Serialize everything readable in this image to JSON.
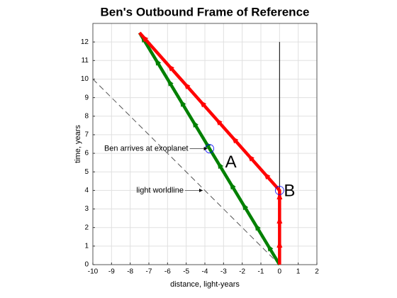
{
  "chart_data": {
    "type": "line",
    "title": "Ben's Outbound Frame of Reference",
    "xlabel": "distance, light-years",
    "ylabel": "time, years",
    "xlim": [
      -10,
      2
    ],
    "xticks": [
      -10,
      -9,
      -8,
      -7,
      -6,
      -5,
      -4,
      -3,
      -2,
      -1,
      0,
      1,
      2
    ],
    "ylim": [
      0,
      13
    ],
    "yticks": [
      0,
      1,
      2,
      3,
      4,
      5,
      6,
      7,
      8,
      9,
      10,
      11,
      12
    ],
    "grid": true,
    "series": [
      {
        "color": "#000000",
        "linewidth": 1,
        "linestyle": "solid",
        "x": [
          0,
          0
        ],
        "values": [
          0,
          12
        ]
      },
      {
        "name": "light worldline",
        "color": "#555555",
        "linewidth": 1,
        "linestyle": "dashed",
        "x": [
          -10,
          0
        ],
        "values": [
          10,
          0
        ]
      },
      {
        "name": "A",
        "color": "#008000",
        "linewidth": 4.5,
        "linestyle": "solid",
        "arrows": true,
        "x": [
          0,
          -7.5
        ],
        "values": [
          0,
          12.5
        ]
      },
      {
        "name": "B",
        "color": "#ff0000",
        "linewidth": 4.5,
        "linestyle": "solid",
        "arrows": true,
        "x": [
          0,
          0,
          -7.5
        ],
        "values": [
          0,
          4,
          12.5
        ]
      }
    ],
    "markers": {
      "color": "#0000ff",
      "x": [
        -3.75,
        0
      ],
      "values": [
        6.25,
        4
      ]
    },
    "annotations": [
      {
        "text": "Ben arrives at exoplanet",
        "x": -3.75,
        "y": 6.25
      },
      {
        "text": "light worldline",
        "x": -4,
        "y": 4
      }
    ]
  }
}
